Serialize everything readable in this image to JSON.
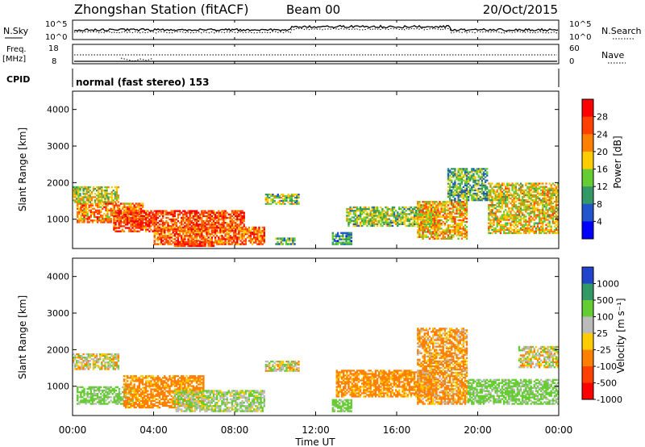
{
  "header": {
    "station": "Zhongshan Station (fitACF)",
    "beam": "Beam 00",
    "date": "20/Oct/2015"
  },
  "top_panels": {
    "nsky": {
      "label": "N.Sky",
      "left_ticks": [
        "10^5",
        "10^0"
      ],
      "right_label": "N.Search",
      "right_ticks": [
        "10^5",
        "10^0"
      ]
    },
    "freq": {
      "label": "Freq.",
      "unit": "[MHz]",
      "left_ticks": [
        "18",
        "8"
      ],
      "right_label": "Nave",
      "right_ticks": [
        "60",
        "0"
      ]
    },
    "cpid": {
      "label": "CPID",
      "text": "normal (fast stereo) 153"
    }
  },
  "x_axis": {
    "label": "Time UT",
    "ticks": [
      "00:00",
      "04:00",
      "08:00",
      "12:00",
      "16:00",
      "20:00",
      "00:00"
    ]
  },
  "power_colorbar": {
    "label": "Power [dB]",
    "ticks": [
      "28",
      "24",
      "20",
      "16",
      "12",
      "8",
      "4"
    ],
    "colors": [
      "#ff0000",
      "#ff4000",
      "#ff8000",
      "#ffcc00",
      "#66cc33",
      "#339966",
      "#2255cc",
      "#0000ff"
    ]
  },
  "velocity_colorbar": {
    "label": "Velocity [m s⁻¹]",
    "ticks": [
      "1000",
      "500",
      "100",
      "25",
      "-25",
      "-100",
      "-500",
      "-1000"
    ],
    "colors": [
      "#2244cc",
      "#339966",
      "#66cc33",
      "#bbbbbb",
      "#ffcc00",
      "#ff8000",
      "#ff4000",
      "#ff0000"
    ]
  },
  "chart_data": [
    {
      "type": "heatmap",
      "title": "",
      "xlabel": "Time UT",
      "ylabel": "Slant Range [km]",
      "xlim": [
        0,
        24
      ],
      "ylim": [
        200,
        4500
      ],
      "yticks": [
        1000,
        2000,
        3000,
        4000
      ],
      "colorbar_label": "Power [dB]",
      "regions": [
        {
          "t0": 0.0,
          "t1": 2.3,
          "r0": 1450,
          "r1": 1900,
          "value_db": 16
        },
        {
          "t0": 0.2,
          "t1": 3.5,
          "r0": 900,
          "r1": 1450,
          "value_db": 22
        },
        {
          "t0": 2.0,
          "t1": 8.5,
          "r0": 650,
          "r1": 1250,
          "value_db": 26
        },
        {
          "t0": 4.0,
          "t1": 9.5,
          "r0": 300,
          "r1": 800,
          "value_db": 24
        },
        {
          "t0": 5.0,
          "t1": 7.0,
          "r0": 250,
          "r1": 400,
          "value_db": 28
        },
        {
          "t0": 9.5,
          "t1": 11.2,
          "r0": 1400,
          "r1": 1700,
          "value_db": 14
        },
        {
          "t0": 10.0,
          "t1": 11.0,
          "r0": 300,
          "r1": 500,
          "value_db": 12
        },
        {
          "t0": 12.8,
          "t1": 13.8,
          "r0": 300,
          "r1": 650,
          "value_db": 10
        },
        {
          "t0": 13.5,
          "t1": 18.0,
          "r0": 800,
          "r1": 1350,
          "value_db": 14
        },
        {
          "t0": 17.0,
          "t1": 19.5,
          "r0": 450,
          "r1": 1500,
          "value_db": 20
        },
        {
          "t0": 18.5,
          "t1": 20.5,
          "r0": 1500,
          "r1": 2400,
          "value_db": 12
        },
        {
          "t0": 20.5,
          "t1": 24.0,
          "r0": 600,
          "r1": 2000,
          "value_db": 18
        }
      ]
    },
    {
      "type": "heatmap",
      "title": "",
      "xlabel": "Time UT",
      "ylabel": "Slant Range [km]",
      "xlim": [
        0,
        24
      ],
      "ylim": [
        200,
        4500
      ],
      "yticks": [
        1000,
        2000,
        3000,
        4000
      ],
      "colorbar_label": "Velocity [m s⁻¹]",
      "regions": [
        {
          "t0": 0.0,
          "t1": 2.3,
          "r0": 1450,
          "r1": 1900,
          "value_ms": 0
        },
        {
          "t0": 0.2,
          "t1": 3.0,
          "r0": 500,
          "r1": 1000,
          "value_ms": 200
        },
        {
          "t0": 2.5,
          "t1": 6.5,
          "r0": 400,
          "r1": 1300,
          "value_ms": -200
        },
        {
          "t0": 5.0,
          "t1": 9.5,
          "r0": 300,
          "r1": 900,
          "value_ms": 100
        },
        {
          "t0": 9.5,
          "t1": 11.2,
          "r0": 1400,
          "r1": 1700,
          "value_ms": 0
        },
        {
          "t0": 12.8,
          "t1": 13.8,
          "r0": 300,
          "r1": 650,
          "value_ms": 200
        },
        {
          "t0": 13.0,
          "t1": 18.0,
          "r0": 700,
          "r1": 1450,
          "value_ms": -200
        },
        {
          "t0": 17.0,
          "t1": 19.5,
          "r0": 500,
          "r1": 2600,
          "value_ms": -150
        },
        {
          "t0": 19.5,
          "t1": 24.0,
          "r0": 500,
          "r1": 1200,
          "value_ms": 200
        },
        {
          "t0": 22.0,
          "t1": 24.0,
          "r0": 1500,
          "r1": 2100,
          "value_ms": 0
        }
      ]
    }
  ]
}
